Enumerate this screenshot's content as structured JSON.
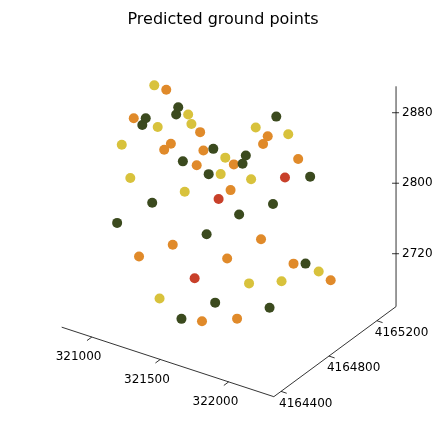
{
  "chart_data": {
    "type": "scatter",
    "title": "Predicted ground points",
    "xlim": [
      320780,
      322330
    ],
    "ylim": [
      4164340,
      4165360
    ],
    "zlim": [
      2660,
      2910
    ],
    "xticks": [
      321000,
      321500,
      322000
    ],
    "yticks": [
      4164400,
      4164800,
      4165200
    ],
    "zticks": [
      2720,
      2800,
      2880
    ],
    "grid": false,
    "series": [
      {
        "color": "#3b4a1e",
        "values": [
          [
            321010,
            4164540,
            2770
          ],
          [
            321480,
            4164540,
            2685
          ],
          [
            321170,
            4164650,
            2790
          ],
          [
            321630,
            4164650,
            2700
          ],
          [
            321010,
            4164750,
            2860
          ],
          [
            321480,
            4164750,
            2760
          ],
          [
            321940,
            4164750,
            2700
          ],
          [
            321170,
            4164850,
            2870
          ],
          [
            321630,
            4164850,
            2780
          ],
          [
            320860,
            4164950,
            2840
          ],
          [
            321320,
            4164950,
            2800
          ],
          [
            321790,
            4164950,
            2790
          ],
          [
            321010,
            4165050,
            2850
          ],
          [
            321480,
            4165050,
            2810
          ],
          [
            321940,
            4165050,
            2720
          ],
          [
            321170,
            4165160,
            2800
          ],
          [
            321630,
            4165160,
            2860
          ],
          [
            320860,
            4165260,
            2760
          ],
          [
            321320,
            4165260,
            2790
          ],
          [
            321790,
            4165260,
            2790
          ]
        ]
      },
      {
        "color": "#e08a2a",
        "values": [
          [
            321170,
            4164540,
            2740
          ],
          [
            321630,
            4164540,
            2690
          ],
          [
            321320,
            4164650,
            2750
          ],
          [
            321790,
            4164650,
            2690
          ],
          [
            321170,
            4164750,
            2840
          ],
          [
            321630,
            4164750,
            2740
          ],
          [
            320860,
            4164850,
            2850
          ],
          [
            321320,
            4164850,
            2820
          ],
          [
            321790,
            4164850,
            2760
          ],
          [
            321010,
            4164950,
            2880
          ],
          [
            321480,
            4164950,
            2790
          ],
          [
            321940,
            4164950,
            2730
          ],
          [
            321170,
            4165050,
            2830
          ],
          [
            321630,
            4165050,
            2840
          ],
          [
            320860,
            4165160,
            2790
          ],
          [
            321320,
            4165160,
            2790
          ],
          [
            321790,
            4165160,
            2820
          ],
          [
            321010,
            4165260,
            2780
          ],
          [
            321480,
            4165260,
            2820
          ],
          [
            321940,
            4165260,
            2680
          ]
        ]
      },
      {
        "color": "#d8c23c",
        "values": [
          [
            321320,
            4164540,
            2700
          ],
          [
            321010,
            4164650,
            2810
          ],
          [
            320860,
            4164750,
            2830
          ],
          [
            321320,
            4164750,
            2800
          ],
          [
            321790,
            4164750,
            2720
          ],
          [
            321010,
            4164850,
            2895
          ],
          [
            321940,
            4164850,
            2720
          ],
          [
            321170,
            4164950,
            2860
          ],
          [
            321630,
            4164950,
            2810
          ],
          [
            320860,
            4165050,
            2820
          ],
          [
            321320,
            4165050,
            2790
          ],
          [
            321010,
            4165160,
            2820
          ],
          [
            321480,
            4165160,
            2840
          ],
          [
            321940,
            4165160,
            2700
          ],
          [
            321170,
            4165260,
            2780
          ],
          [
            321630,
            4165260,
            2830
          ]
        ]
      },
      {
        "color": "#c8402a",
        "values": [
          [
            321480,
            4164650,
            2720
          ],
          [
            321480,
            4164850,
            2790
          ],
          [
            321790,
            4165050,
            2810
          ]
        ]
      }
    ]
  }
}
